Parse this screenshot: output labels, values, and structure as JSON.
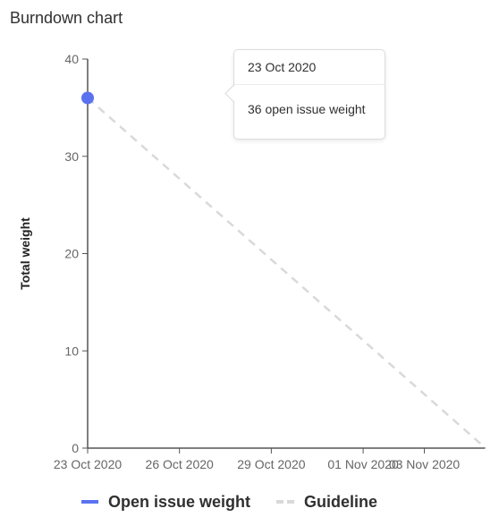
{
  "title": "Burndown chart",
  "colors": {
    "open_issue_weight": "#5a72f0",
    "guideline": "#d9d9d9",
    "axis": "#555555"
  },
  "tooltip": {
    "date": "23 Oct 2020",
    "value_text": "36 open issue weight"
  },
  "legend": {
    "items": [
      {
        "label": "Open issue weight",
        "style": "solid"
      },
      {
        "label": "Guideline",
        "style": "dashed"
      }
    ]
  },
  "chart_data": {
    "type": "line",
    "ylabel": "Total weight",
    "xlabel": "",
    "ylim": [
      0,
      40
    ],
    "yticks": [
      0,
      10,
      20,
      30,
      40
    ],
    "xlim": [
      "2020-10-23",
      "2020-11-05"
    ],
    "xticks": [
      {
        "date": "2020-10-23",
        "label": "23 Oct 2020"
      },
      {
        "date": "2020-10-26",
        "label": "26 Oct 2020"
      },
      {
        "date": "2020-10-29",
        "label": "29 Oct 2020"
      },
      {
        "date": "2020-11-01",
        "label": "01 Nov 2020"
      },
      {
        "date": "2020-11-03",
        "label": "03 Nov 2020"
      }
    ],
    "grid": false,
    "legend_position": "bottom",
    "series": [
      {
        "name": "Open issue weight",
        "style": "solid",
        "points": [
          {
            "x": "2020-10-23",
            "y": 36
          }
        ]
      },
      {
        "name": "Guideline",
        "style": "dashed",
        "points": [
          {
            "x": "2020-10-23",
            "y": 36
          },
          {
            "x": "2020-11-05",
            "y": 0
          }
        ]
      }
    ]
  }
}
